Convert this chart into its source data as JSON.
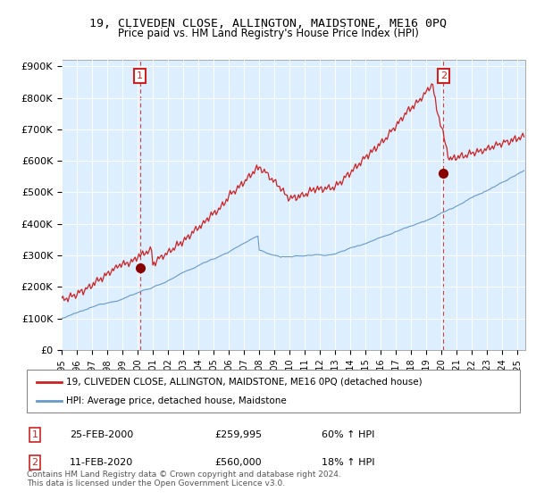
{
  "title": "19, CLIVEDEN CLOSE, ALLINGTON, MAIDSTONE, ME16 0PQ",
  "subtitle": "Price paid vs. HM Land Registry's House Price Index (HPI)",
  "ylabel_ticks": [
    "£0",
    "£100K",
    "£200K",
    "£300K",
    "£400K",
    "£500K",
    "£600K",
    "£700K",
    "£800K",
    "£900K"
  ],
  "ytick_vals": [
    0,
    100000,
    200000,
    300000,
    400000,
    500000,
    600000,
    700000,
    800000,
    900000
  ],
  "ylim": [
    0,
    920000
  ],
  "xlim_start": 1995.0,
  "xlim_end": 2025.5,
  "sale1_x": 2000.15,
  "sale1_y": 259995,
  "sale1_label": "1",
  "sale1_date": "25-FEB-2000",
  "sale1_price": "£259,995",
  "sale1_hpi": "60% ↑ HPI",
  "sale2_x": 2020.12,
  "sale2_y": 560000,
  "sale2_label": "2",
  "sale2_date": "11-FEB-2020",
  "sale2_price": "£560,000",
  "sale2_hpi": "18% ↑ HPI",
  "line1_color": "#cc2222",
  "line2_color": "#6699cc",
  "marker_color": "#880000",
  "vline_color": "#cc2222",
  "background_color": "#ffffff",
  "plot_bg_color": "#ddeeff",
  "grid_color": "#ffffff",
  "legend1_label": "19, CLIVEDEN CLOSE, ALLINGTON, MAIDSTONE, ME16 0PQ (detached house)",
  "legend2_label": "HPI: Average price, detached house, Maidstone",
  "footnote": "Contains HM Land Registry data © Crown copyright and database right 2024.\nThis data is licensed under the Open Government Licence v3.0."
}
